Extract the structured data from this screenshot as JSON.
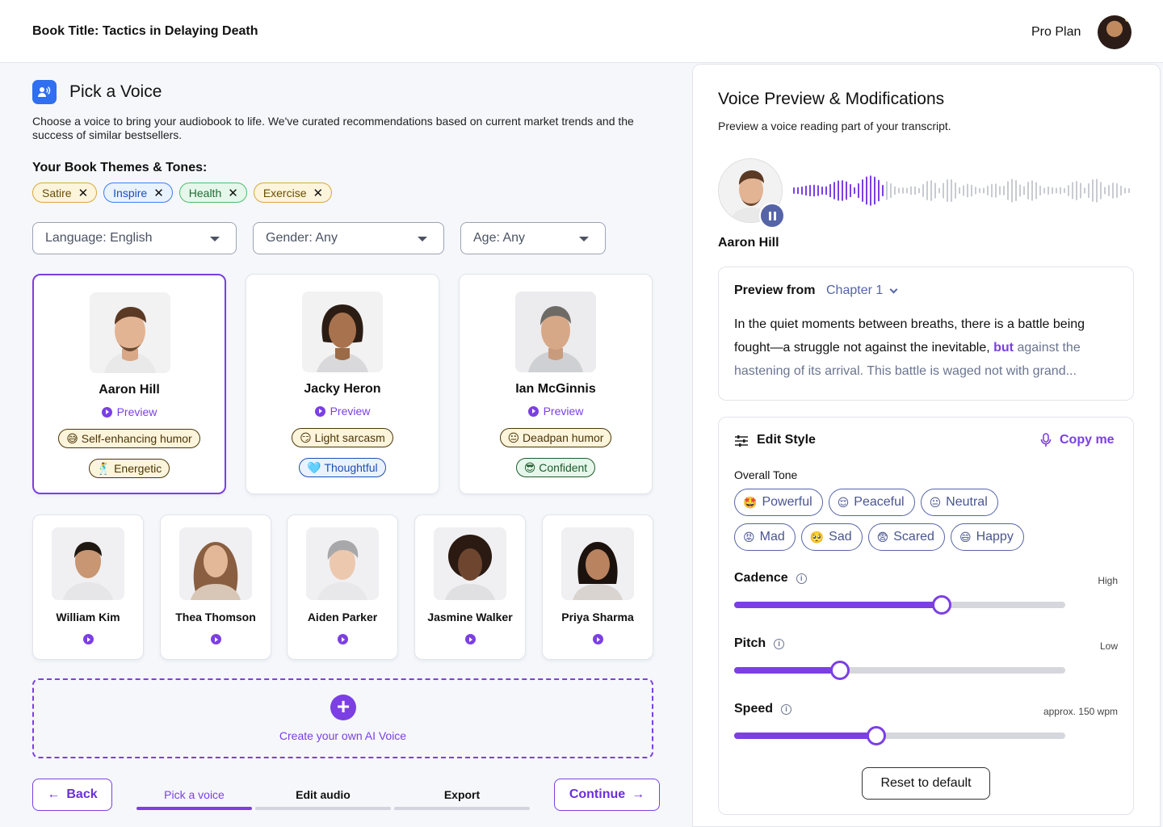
{
  "header": {
    "book_title": "Book Title: Tactics in Delaying Death",
    "plan": "Pro Plan"
  },
  "pick": {
    "title": "Pick a Voice",
    "description": "Choose a voice to bring your audiobook to life. We've curated recommendations based on current market trends and the success of similar bestsellers.",
    "themes_label": "Your Book Themes & Tones:",
    "tags": [
      "Satire",
      "Inspire",
      "Health",
      "Exercise"
    ]
  },
  "filters": {
    "language": "Language: English",
    "gender": "Gender: Any",
    "age": "Age: Any"
  },
  "featured_voices": [
    {
      "name": "Aaron Hill",
      "preview": "Preview",
      "trait1": "😅 Self-enhancing humor",
      "trait2": "🕺 Energetic",
      "selected": true
    },
    {
      "name": "Jacky Heron",
      "preview": "Preview",
      "trait1": "😏 Light sarcasm",
      "trait2": "🩵 Thoughtful"
    },
    {
      "name": "Ian McGinnis",
      "preview": "Preview",
      "trait1": "😐 Deadpan humor",
      "trait2": "😎 Confident"
    }
  ],
  "more_voices": [
    "William Kim",
    "Thea Thomson",
    "Aiden Parker",
    "Jasmine Walker",
    "Priya Sharma"
  ],
  "create": {
    "label": "Create your own AI Voice",
    "plus": "+"
  },
  "nav": {
    "back": "Back",
    "continue": "Continue",
    "steps": [
      "Pick a voice",
      "Edit audio",
      "Export"
    ],
    "active_step": 0
  },
  "preview_panel": {
    "title": "Voice Preview & Modifications",
    "subtitle": "Preview a voice reading part of your transcript.",
    "voice_name": "Aaron Hill",
    "preview_from_label": "Preview from",
    "chapter": "Chapter 1",
    "transcript_read": "In the quiet moments between breaths, there is a battle being fought—a struggle not against the inevitable,",
    "transcript_current": "but",
    "transcript_rest": "against the hastening of its arrival. This battle is waged not with grand..."
  },
  "edit_style": {
    "title": "Edit Style",
    "copy_me": "Copy me",
    "overall_tone_label": "Overall Tone",
    "tones_row1": [
      {
        "emoji": "🤩",
        "label": "Powerful"
      },
      {
        "emoji": "😌",
        "label": "Peaceful"
      },
      {
        "emoji": "😐",
        "label": "Neutral"
      }
    ],
    "tones_row2": [
      {
        "emoji": "😡",
        "label": "Mad"
      },
      {
        "emoji": "🥺",
        "label": "Sad"
      },
      {
        "emoji": "😨",
        "label": "Scared"
      },
      {
        "emoji": "😄",
        "label": "Happy"
      }
    ],
    "sliders": [
      {
        "label": "Cadence",
        "hint": "High",
        "value": 0.628
      },
      {
        "label": "Pitch",
        "hint": "Low",
        "value": 0.32
      },
      {
        "label": "Speed",
        "hint": "approx. 150 wpm",
        "value": 0.43
      }
    ],
    "reset": "Reset to default"
  },
  "colors": {
    "accent": "#7b3fe4",
    "slate": "#5564a7",
    "brand_blue": "#2f6ff0"
  }
}
